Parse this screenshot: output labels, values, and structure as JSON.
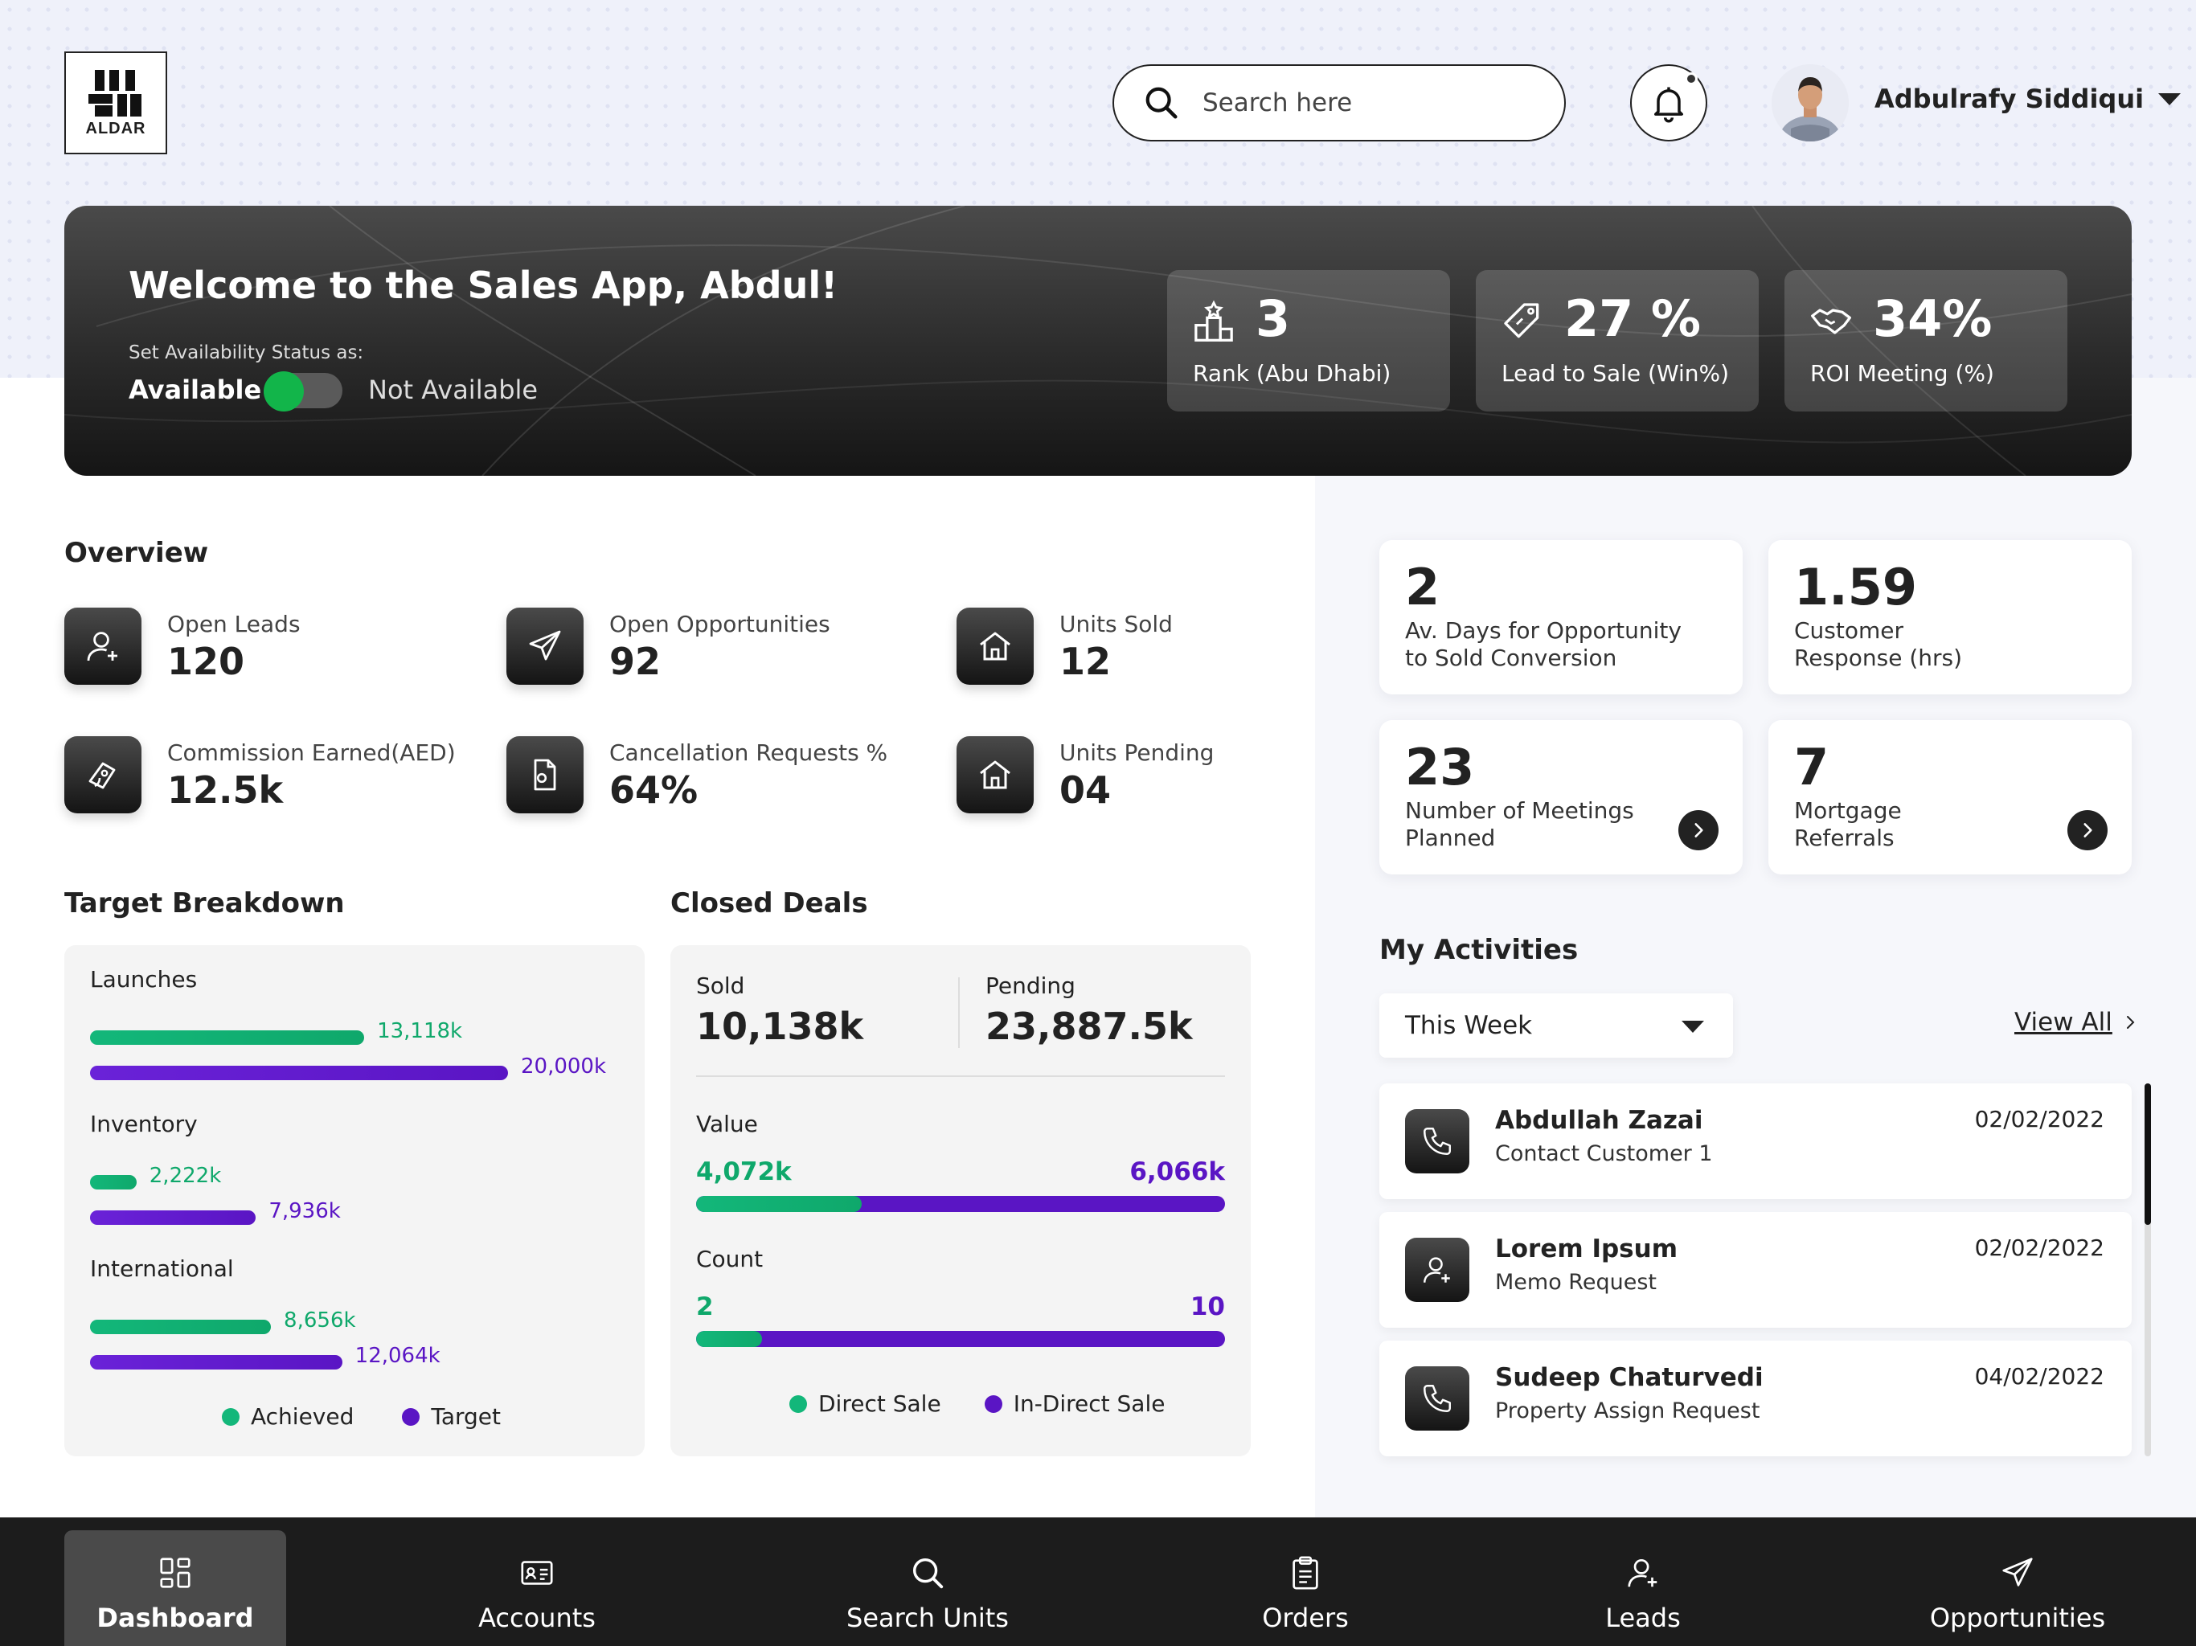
{
  "header": {
    "logo_text": "ALDAR",
    "search_placeholder": "Search here",
    "user_name": "Adbulrafy Siddiqui"
  },
  "banner": {
    "welcome": "Welcome to the Sales App, Abdul!",
    "availability_label": "Set Availability Status as:",
    "available": "Available",
    "not_available": "Not Available",
    "kpis": [
      {
        "value": "3",
        "label": "Rank (Abu Dhabi)",
        "icon": "podium-icon"
      },
      {
        "value": "27 %",
        "label": "Lead to Sale (Win%)",
        "icon": "price-tag-icon"
      },
      {
        "value": "34%",
        "label": "ROI Meeting (%)",
        "icon": "handshake-icon"
      }
    ]
  },
  "overview": {
    "title": "Overview",
    "items": [
      {
        "label": "Open Leads",
        "value": "120",
        "icon": "add-user-icon"
      },
      {
        "label": "Open Opportunities",
        "value": "92",
        "icon": "paper-plane-icon"
      },
      {
        "label": "Units Sold",
        "value": "12",
        "icon": "home-icon"
      },
      {
        "label": "Commission Earned(AED)",
        "value": "12.5k",
        "icon": "money-icon"
      },
      {
        "label": "Cancellation Requests %",
        "value": "64%",
        "icon": "document-icon"
      },
      {
        "label": "Units Pending",
        "value": "04",
        "icon": "home-icon"
      }
    ]
  },
  "target_breakdown": {
    "title": "Target Breakdown",
    "rows": [
      {
        "name": "Launches",
        "achieved": "13,118k",
        "target": "20,000k",
        "achieved_value": 13118,
        "target_value": 20000
      },
      {
        "name": "Inventory",
        "achieved": "2,222k",
        "target": "7,936k",
        "achieved_value": 2222,
        "target_value": 7936
      },
      {
        "name": "International",
        "achieved": "8,656k",
        "target": "12,064k",
        "achieved_value": 8656,
        "target_value": 12064
      }
    ],
    "legend": {
      "achieved": "Achieved",
      "target": "Target"
    }
  },
  "closed_deals": {
    "title": "Closed Deals",
    "sold_label": "Sold",
    "sold_value": "10,138k",
    "pending_label": "Pending",
    "pending_value": "23,887.5k",
    "value_label": "Value",
    "value_direct": "4,072k",
    "value_indirect": "6,066k",
    "count_label": "Count",
    "count_direct": "2",
    "count_indirect": "10",
    "legend": {
      "direct": "Direct Sale",
      "indirect": "In-Direct Sale"
    }
  },
  "stats": [
    {
      "value": "2",
      "label_line1": "Av. Days for Opportunity",
      "label_line2": "to Sold Conversion"
    },
    {
      "value": "1.59",
      "label_line1": "Customer",
      "label_line2": "Response (hrs)"
    },
    {
      "value": "23",
      "label_line1": "Number of Meetings",
      "label_line2": "Planned"
    },
    {
      "value": "7",
      "label_line1": "Mortgage",
      "label_line2": "Referrals"
    }
  ],
  "activities": {
    "title": "My Activities",
    "filter": "This Week",
    "view_all": "View All",
    "items": [
      {
        "name": "Abdullah Zazai",
        "sub": "Contact Customer 1",
        "date": "02/02/2022",
        "icon": "phone-icon"
      },
      {
        "name": "Lorem Ipsum",
        "sub": "Memo Request",
        "date": "02/02/2022",
        "icon": "add-user-icon"
      },
      {
        "name": "Sudeep Chaturvedi",
        "sub": "Property Assign Request",
        "date": "04/02/2022",
        "icon": "phone-icon"
      }
    ]
  },
  "nav": {
    "items": [
      {
        "label": "Dashboard",
        "icon": "dashboard-icon"
      },
      {
        "label": "Accounts",
        "icon": "id-card-icon"
      },
      {
        "label": "Search Units",
        "icon": "search-icon"
      },
      {
        "label": "Orders",
        "icon": "clipboard-icon"
      },
      {
        "label": "Leads",
        "icon": "add-user-icon"
      },
      {
        "label": "Opportunities",
        "icon": "paper-plane-icon"
      }
    ]
  }
}
